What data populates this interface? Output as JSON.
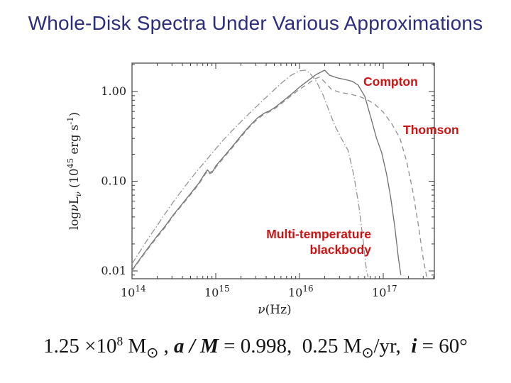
{
  "slide": {
    "title": "Whole-Disk Spectra Under Various Approximations",
    "title_color": "#2d2d7e",
    "background": "#ffffff",
    "annotation_color": "#cc1414"
  },
  "annotations": {
    "compton": "Compton",
    "thomson": "Thomson",
    "multibb_line1": "Multi-temperature",
    "multibb_line2": "blackbody"
  },
  "caption": {
    "seg1": "1.25 ×10",
    "sup1": "8",
    "seg2": " M",
    "sub1": "⊙",
    "seg3": " , ",
    "am": "a / M",
    "seg4": " = 0.998,  0.25 M",
    "sub2": "⊙",
    "seg5": "/yr,  ",
    "i": "i",
    "seg6": " = 60°"
  },
  "chart_data": {
    "type": "line",
    "title": "",
    "xlabel_parts": [
      {
        "t": "ν",
        "i": 1
      },
      {
        "t": "(Hz)"
      }
    ],
    "ylabel_parts": [
      {
        "t": "log"
      },
      {
        "t": "ν",
        "i": 1
      },
      {
        "t": "L"
      },
      {
        "t": "ν",
        "sub": 1,
        "i": 1
      },
      {
        "t": " (10"
      },
      {
        "t": "45",
        "sup": 1
      },
      {
        "t": " erg s"
      },
      {
        "t": "-1",
        "sup": 1
      },
      {
        "t": ")"
      }
    ],
    "x_scale": "log",
    "y_scale": "log",
    "xlim_log": [
      14,
      17.61
    ],
    "ylim_log": [
      -2.087,
      0.317
    ],
    "grid": false,
    "legend": "inline-annotations",
    "x_tick_base": "10",
    "x_tick_exponents": [
      "14",
      "15",
      "16",
      "17"
    ],
    "y_ticks": [
      {
        "label": "1.00",
        "value": 1.0
      },
      {
        "label": "0.10",
        "value": 0.1
      },
      {
        "label": "0.01",
        "value": 0.01
      }
    ],
    "frame_color": "#3c3c3c",
    "series": [
      {
        "id": "compton",
        "name": "Compton",
        "style": "solid",
        "dash": "",
        "color": "#6e6e6e",
        "points": [
          [
            14.0,
            0.0102
          ],
          [
            14.1,
            0.0138
          ],
          [
            14.2,
            0.0185
          ],
          [
            14.3,
            0.0245
          ],
          [
            14.4,
            0.032
          ],
          [
            14.5,
            0.043
          ],
          [
            14.6,
            0.056
          ],
          [
            14.7,
            0.073
          ],
          [
            14.8,
            0.096
          ],
          [
            14.86,
            0.118
          ],
          [
            14.9,
            0.134
          ],
          [
            14.93,
            0.125
          ],
          [
            14.97,
            0.131
          ],
          [
            15.0,
            0.148
          ],
          [
            15.1,
            0.19
          ],
          [
            15.2,
            0.245
          ],
          [
            15.3,
            0.32
          ],
          [
            15.4,
            0.41
          ],
          [
            15.5,
            0.51
          ],
          [
            15.58,
            0.575
          ],
          [
            15.65,
            0.615
          ],
          [
            15.72,
            0.68
          ],
          [
            15.8,
            0.78
          ],
          [
            15.9,
            0.93
          ],
          [
            16.0,
            1.12
          ],
          [
            16.1,
            1.32
          ],
          [
            16.2,
            1.55
          ],
          [
            16.3,
            1.73
          ],
          [
            16.36,
            1.52
          ],
          [
            16.45,
            1.42
          ],
          [
            16.55,
            1.36
          ],
          [
            16.63,
            1.3
          ],
          [
            16.7,
            1.18
          ],
          [
            16.78,
            0.88
          ],
          [
            16.85,
            0.52
          ],
          [
            16.92,
            0.3
          ],
          [
            16.98,
            0.21
          ],
          [
            17.04,
            0.12
          ],
          [
            17.09,
            0.065
          ],
          [
            17.14,
            0.03
          ],
          [
            17.18,
            0.014
          ],
          [
            17.21,
            0.009
          ]
        ]
      },
      {
        "id": "thomson",
        "name": "Thomson",
        "style": "dashed",
        "dash": "7 5",
        "color": "#8f8f8f",
        "points": [
          [
            14.0,
            0.01
          ],
          [
            14.1,
            0.0135
          ],
          [
            14.2,
            0.018
          ],
          [
            14.3,
            0.0238
          ],
          [
            14.4,
            0.031
          ],
          [
            14.5,
            0.042
          ],
          [
            14.6,
            0.0545
          ],
          [
            14.7,
            0.071
          ],
          [
            14.8,
            0.093
          ],
          [
            14.86,
            0.114
          ],
          [
            14.9,
            0.13
          ],
          [
            14.93,
            0.121
          ],
          [
            14.97,
            0.127
          ],
          [
            15.0,
            0.143
          ],
          [
            15.1,
            0.185
          ],
          [
            15.2,
            0.238
          ],
          [
            15.3,
            0.31
          ],
          [
            15.4,
            0.4
          ],
          [
            15.5,
            0.495
          ],
          [
            15.58,
            0.56
          ],
          [
            15.65,
            0.6
          ],
          [
            15.72,
            0.66
          ],
          [
            15.8,
            0.755
          ],
          [
            15.9,
            0.9
          ],
          [
            16.0,
            1.06
          ],
          [
            16.1,
            1.22
          ],
          [
            16.18,
            1.38
          ],
          [
            16.24,
            1.45
          ],
          [
            16.3,
            1.28
          ],
          [
            16.38,
            1.06
          ],
          [
            16.48,
            0.98
          ],
          [
            16.6,
            0.94
          ],
          [
            16.7,
            0.89
          ],
          [
            16.8,
            0.82
          ],
          [
            16.9,
            0.72
          ],
          [
            17.0,
            0.59
          ],
          [
            17.1,
            0.44
          ],
          [
            17.2,
            0.3
          ],
          [
            17.28,
            0.165
          ],
          [
            17.35,
            0.08
          ],
          [
            17.42,
            0.032
          ],
          [
            17.48,
            0.013
          ],
          [
            17.52,
            0.0085
          ]
        ]
      },
      {
        "id": "multibb",
        "name": "Multi-temperature blackbody",
        "style": "dashdot",
        "dash": "9 3 1.5 3",
        "color": "#949494",
        "points": [
          [
            14.0,
            0.012
          ],
          [
            14.1,
            0.0168
          ],
          [
            14.2,
            0.0235
          ],
          [
            14.3,
            0.032
          ],
          [
            14.4,
            0.044
          ],
          [
            14.5,
            0.06
          ],
          [
            14.6,
            0.08
          ],
          [
            14.7,
            0.106
          ],
          [
            14.8,
            0.138
          ],
          [
            14.9,
            0.178
          ],
          [
            15.0,
            0.23
          ],
          [
            15.1,
            0.295
          ],
          [
            15.2,
            0.37
          ],
          [
            15.3,
            0.46
          ],
          [
            15.4,
            0.57
          ],
          [
            15.5,
            0.7
          ],
          [
            15.6,
            0.86
          ],
          [
            15.7,
            1.05
          ],
          [
            15.8,
            1.28
          ],
          [
            15.9,
            1.52
          ],
          [
            16.0,
            1.7
          ],
          [
            16.07,
            1.73
          ],
          [
            16.12,
            1.62
          ],
          [
            16.2,
            1.3
          ],
          [
            16.28,
            0.92
          ],
          [
            16.35,
            0.62
          ],
          [
            16.42,
            0.42
          ],
          [
            16.5,
            0.3
          ],
          [
            16.58,
            0.22
          ],
          [
            16.65,
            0.115
          ],
          [
            16.71,
            0.052
          ],
          [
            16.76,
            0.022
          ],
          [
            16.8,
            0.01
          ],
          [
            16.82,
            0.0085
          ]
        ]
      }
    ]
  }
}
